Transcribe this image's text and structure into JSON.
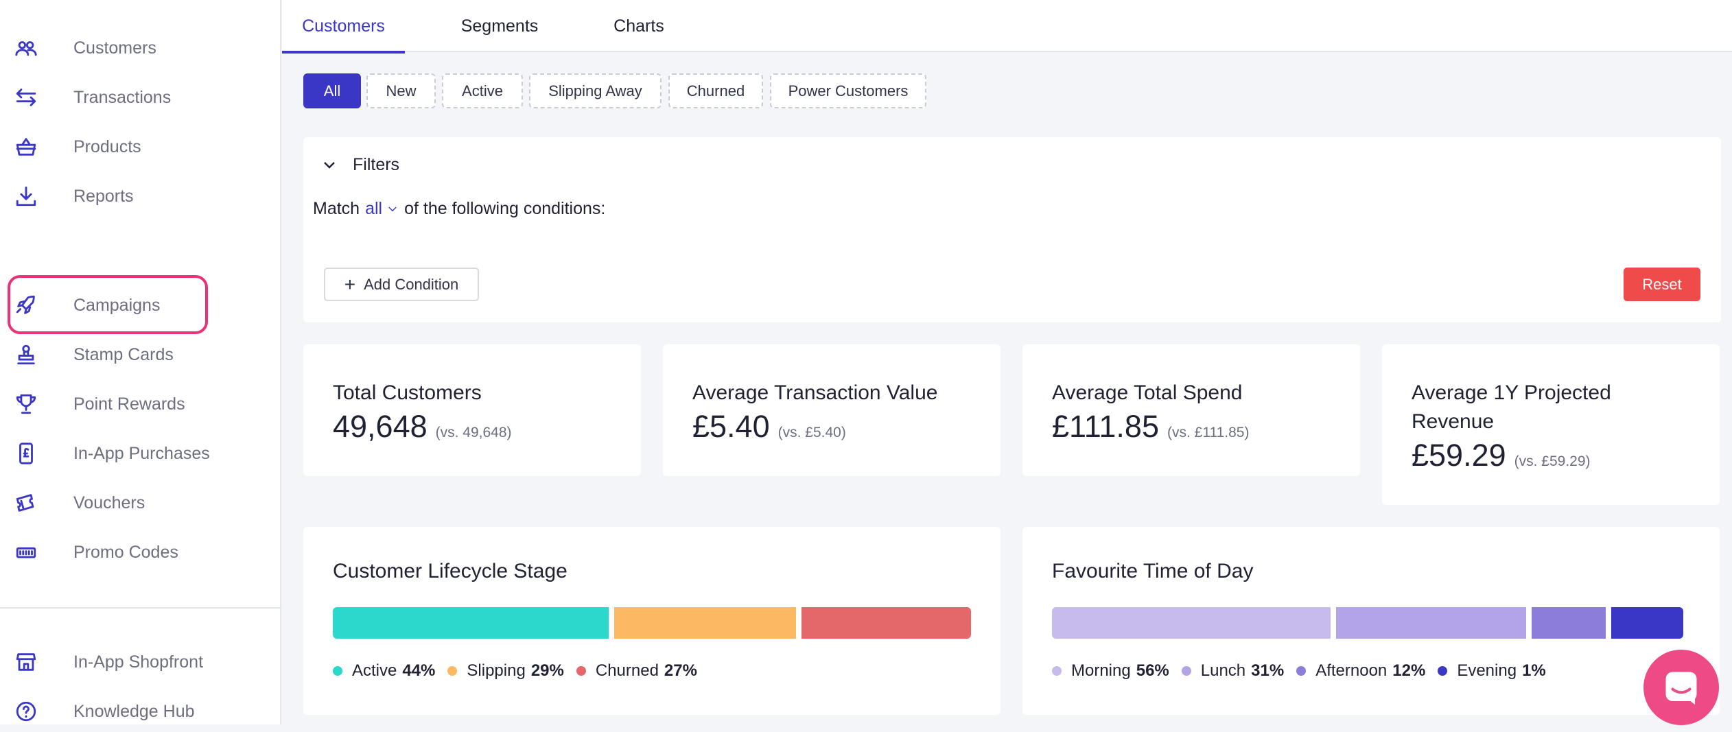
{
  "sidebar": {
    "items": [
      {
        "label": "Customers",
        "icon": "customers-icon"
      },
      {
        "label": "Transactions",
        "icon": "transactions-icon"
      },
      {
        "label": "Products",
        "icon": "basket-icon"
      },
      {
        "label": "Reports",
        "icon": "download-icon"
      },
      {
        "label": "Campaigns",
        "icon": "rocket-icon"
      },
      {
        "label": "Stamp Cards",
        "icon": "stamp-icon"
      },
      {
        "label": "Point Rewards",
        "icon": "trophy-icon"
      },
      {
        "label": "In-App Purchases",
        "icon": "phone-pound-icon"
      },
      {
        "label": "Vouchers",
        "icon": "ticket-icon"
      },
      {
        "label": "Promo Codes",
        "icon": "promo-code-icon"
      },
      {
        "label": "In-App Shopfront",
        "icon": "shopfront-icon"
      },
      {
        "label": "Knowledge Hub",
        "icon": "help-icon"
      }
    ],
    "highlighted_item": "Campaigns"
  },
  "tabs": [
    {
      "label": "Customers",
      "active": true
    },
    {
      "label": "Segments",
      "active": false
    },
    {
      "label": "Charts",
      "active": false
    }
  ],
  "segments": [
    {
      "label": "All",
      "active": true
    },
    {
      "label": "New",
      "active": false
    },
    {
      "label": "Active",
      "active": false
    },
    {
      "label": "Slipping Away",
      "active": false
    },
    {
      "label": "Churned",
      "active": false
    },
    {
      "label": "Power Customers",
      "active": false
    }
  ],
  "filters": {
    "title": "Filters",
    "match_prefix": "Match",
    "match_value": "all",
    "match_suffix": "of the following conditions:",
    "add_condition_label": "Add Condition",
    "reset_label": "Reset"
  },
  "stats": [
    {
      "title": "Total Customers",
      "value": "49,648",
      "compare": "(vs. 49,648)"
    },
    {
      "title": "Average Transaction Value",
      "value": "£5.40",
      "compare": "(vs. £5.40)"
    },
    {
      "title": "Average Total Spend",
      "value": "£111.85",
      "compare": "(vs. £111.85)"
    },
    {
      "title": "Average 1Y Projected Revenue",
      "value": "£59.29",
      "compare": "(vs. £59.29)"
    }
  ],
  "lifecycle": {
    "title": "Customer Lifecycle Stage",
    "segments": [
      {
        "name": "Active",
        "percent_label": "44%",
        "value": 44,
        "color": "#2bd9cc"
      },
      {
        "name": "Slipping",
        "percent_label": "29%",
        "value": 29,
        "color": "#fdb863"
      },
      {
        "name": "Churned",
        "percent_label": "27%",
        "value": 27,
        "color": "#e4676a"
      }
    ]
  },
  "time_of_day": {
    "title": "Favourite Time of Day",
    "segments": [
      {
        "name": "Morning",
        "percent_label": "56%",
        "value": 56,
        "color": "#c7bbec"
      },
      {
        "name": "Lunch",
        "percent_label": "31%",
        "value": 31,
        "color": "#b2a4e6"
      },
      {
        "name": "Afternoon",
        "percent_label": "12%",
        "value": 12,
        "color": "#8c7ddb"
      },
      {
        "name": "Evening",
        "percent_label": "1%",
        "value": 1,
        "color": "#3b37c6"
      }
    ]
  },
  "colors": {
    "accent": "#3b37c6",
    "highlight": "#e8337a",
    "reset": "#ef4b4b",
    "chat": "#ee4a86"
  },
  "chat": {
    "icon": "chat-icon"
  }
}
